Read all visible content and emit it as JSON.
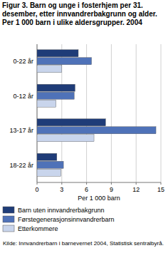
{
  "chart_data": {
    "type": "bar",
    "orientation": "horizontal",
    "title": "Figur 3. Barn og unge i fosterhjem per 31. desember, etter innvandrerbakgrunn og alder. Per 1 000 barn i ulike aldersgrupper. 2004",
    "categories": [
      "0-22 år",
      "0-12 år",
      "13-17 år",
      "18-22 år"
    ],
    "series": [
      {
        "name": "Barn uten innvandrerbakgrunn",
        "color": "#1f3c78",
        "values": [
          5.0,
          4.6,
          8.3,
          2.4
        ]
      },
      {
        "name": "Førstegenerasjonsinnvandrerbarn",
        "color": "#4f72b8",
        "values": [
          6.6,
          4.5,
          14.4,
          3.2
        ]
      },
      {
        "name": "Etterkommere",
        "color": "#c9d5ec",
        "values": [
          3.0,
          2.3,
          6.9,
          2.9
        ]
      }
    ],
    "x_label": "Per 1 000 barn",
    "xlim": [
      0,
      15
    ],
    "xticks": [
      0,
      3,
      6,
      9,
      12,
      15
    ],
    "grid": true,
    "source": "Kilde: Innvandrerbarn i barnevernet 2004, Statistisk sentralbyrå."
  }
}
